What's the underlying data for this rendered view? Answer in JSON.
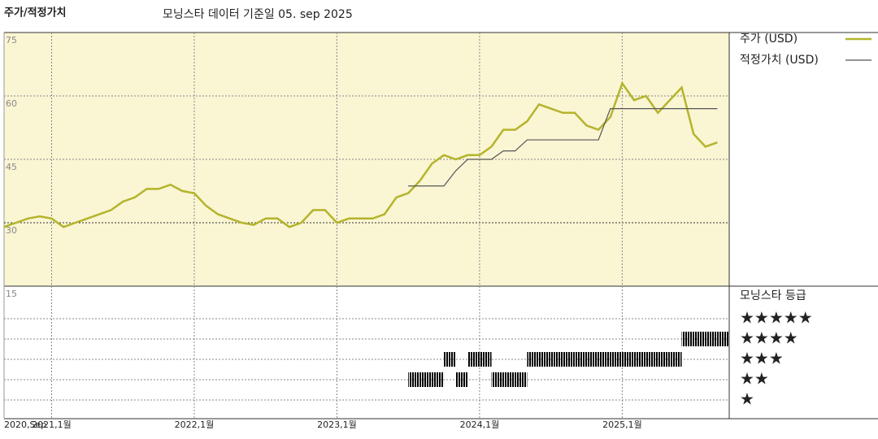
{
  "title": "주가/적정가치",
  "subtitle": "모닝스타 데이터 기준일 05. sep 2025",
  "chart_data": [
    {
      "type": "line",
      "x": [
        "2020-09",
        "2020-10",
        "2020-11",
        "2020-12",
        "2021-01",
        "2021-02",
        "2021-03",
        "2021-04",
        "2021-05",
        "2021-06",
        "2021-07",
        "2021-08",
        "2021-09",
        "2021-10",
        "2021-11",
        "2021-12",
        "2022-01",
        "2022-02",
        "2022-03",
        "2022-04",
        "2022-05",
        "2022-06",
        "2022-07",
        "2022-08",
        "2022-09",
        "2022-10",
        "2022-11",
        "2022-12",
        "2023-01",
        "2023-02",
        "2023-03",
        "2023-04",
        "2023-05",
        "2023-06",
        "2023-07",
        "2023-08",
        "2023-09",
        "2023-10",
        "2023-11",
        "2023-12",
        "2024-01",
        "2024-02",
        "2024-03",
        "2024-04",
        "2024-05",
        "2024-06",
        "2024-07",
        "2024-08",
        "2024-09",
        "2024-10",
        "2024-11",
        "2024-12",
        "2025-01",
        "2025-02",
        "2025-03",
        "2025-04",
        "2025-05",
        "2025-06",
        "2025-07",
        "2025-08",
        "2025-09"
      ],
      "series": [
        {
          "name": "주가 (USD)",
          "color": "#b4b42c",
          "values": [
            29,
            30,
            31,
            31.5,
            31,
            29,
            30,
            31,
            32,
            33,
            35,
            36,
            38,
            38,
            39,
            37.5,
            37,
            34,
            32,
            31,
            30,
            29.5,
            31,
            31,
            29,
            30,
            33,
            33,
            30,
            31,
            31,
            31,
            32,
            36,
            37,
            40,
            44,
            46,
            45,
            46,
            46,
            48,
            52,
            52,
            54,
            58,
            57,
            56,
            56,
            53,
            52,
            55,
            63,
            59,
            60,
            56,
            59,
            62,
            51,
            48,
            49
          ]
        },
        {
          "name": "적정가치 (USD)",
          "color": "#555555",
          "values": [
            null,
            null,
            null,
            null,
            null,
            null,
            null,
            null,
            null,
            null,
            null,
            null,
            null,
            null,
            null,
            null,
            null,
            null,
            null,
            null,
            null,
            null,
            null,
            null,
            null,
            null,
            null,
            null,
            null,
            null,
            null,
            null,
            null,
            null,
            38.7,
            38.7,
            38.7,
            38.7,
            42.3,
            45,
            45,
            45,
            47,
            47,
            49.6,
            49.6,
            49.6,
            49.6,
            49.6,
            49.6,
            49.6,
            57,
            57,
            57,
            57,
            57,
            57,
            57,
            57,
            57,
            57
          ]
        }
      ],
      "xlim": [
        "2020-09",
        "2025-10"
      ],
      "xticks": [
        {
          "value": "2020-09",
          "label": "2020,Sep"
        },
        {
          "value": "2021-01",
          "label": "2021,1월"
        },
        {
          "value": "2022-01",
          "label": "2022,1월"
        },
        {
          "value": "2023-01",
          "label": "2023,1월"
        },
        {
          "value": "2024-01",
          "label": "2024,1월"
        },
        {
          "value": "2025-01",
          "label": "2025,1월"
        }
      ],
      "ylim": [
        15,
        75
      ],
      "yticks": [
        15,
        30,
        45,
        60,
        75
      ],
      "grid": true
    },
    {
      "type": "rating",
      "title": "모닝스타 등급",
      "categories": [
        "★★★★★",
        "★★★★",
        "★★★",
        "★★",
        "★"
      ],
      "x": [
        "2023-07",
        "2023-08",
        "2023-09",
        "2023-10",
        "2023-11",
        "2023-12",
        "2024-01",
        "2024-02",
        "2024-03",
        "2024-04",
        "2024-05",
        "2024-06",
        "2024-07",
        "2024-08",
        "2024-09",
        "2024-10",
        "2024-11",
        "2024-12",
        "2025-01",
        "2025-02",
        "2025-03",
        "2025-04",
        "2025-05",
        "2025-06",
        "2025-07",
        "2025-08",
        "2025-09"
      ],
      "values": [
        2,
        2,
        2,
        3,
        2,
        3,
        3,
        2,
        2,
        2,
        3,
        3,
        3,
        3,
        3,
        3,
        3,
        3,
        3,
        3,
        3,
        3,
        3,
        4,
        4,
        4,
        4
      ],
      "color": "#000000"
    }
  ]
}
